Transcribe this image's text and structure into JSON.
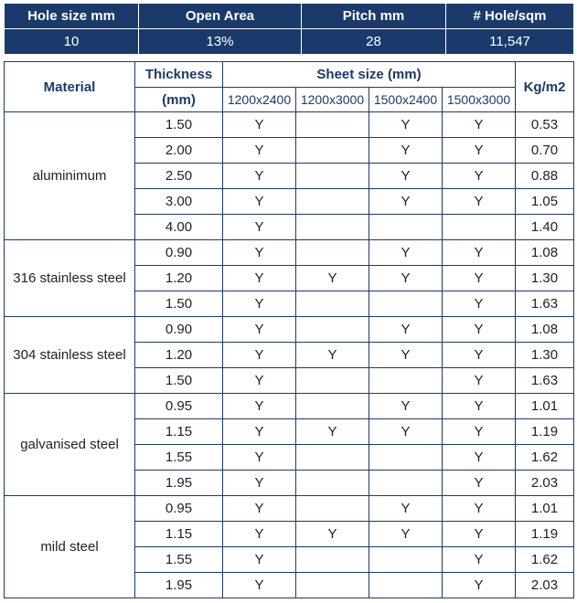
{
  "summary": {
    "headers": [
      "Hole size mm",
      "Open Area",
      "Pitch mm",
      "# Hole/sqm"
    ],
    "values": [
      "10",
      "13%",
      "28",
      "11,547"
    ]
  },
  "table": {
    "material_header": "Material",
    "thickness_header_line1": "Thickness",
    "thickness_header_line2": "(mm)",
    "sheet_size_header": "Sheet size (mm)",
    "sheet_sizes": [
      "1200x2400",
      "1200x3000",
      "1500x2400",
      "1500x3000"
    ],
    "kg_header": "Kg/m2",
    "groups": [
      {
        "material": "aluminimum",
        "rows": [
          {
            "thickness": "1.50",
            "s1": "Y",
            "s2": "",
            "s3": "Y",
            "s4": "Y",
            "kg": "0.53"
          },
          {
            "thickness": "2.00",
            "s1": "Y",
            "s2": "",
            "s3": "Y",
            "s4": "Y",
            "kg": "0.70"
          },
          {
            "thickness": "2.50",
            "s1": "Y",
            "s2": "",
            "s3": "Y",
            "s4": "Y",
            "kg": "0.88"
          },
          {
            "thickness": "3.00",
            "s1": "Y",
            "s2": "",
            "s3": "Y",
            "s4": "Y",
            "kg": "1.05"
          },
          {
            "thickness": "4.00",
            "s1": "Y",
            "s2": "",
            "s3": "",
            "s4": "",
            "kg": "1.40"
          }
        ]
      },
      {
        "material": "316 stainless steel",
        "rows": [
          {
            "thickness": "0.90",
            "s1": "Y",
            "s2": "",
            "s3": "Y",
            "s4": "Y",
            "kg": "1.08"
          },
          {
            "thickness": "1.20",
            "s1": "Y",
            "s2": "Y",
            "s3": "Y",
            "s4": "Y",
            "kg": "1.30"
          },
          {
            "thickness": "1.50",
            "s1": "Y",
            "s2": "",
            "s3": "",
            "s4": "Y",
            "kg": "1.63"
          }
        ]
      },
      {
        "material": "304 stainless steel",
        "rows": [
          {
            "thickness": "0.90",
            "s1": "Y",
            "s2": "",
            "s3": "Y",
            "s4": "Y",
            "kg": "1.08"
          },
          {
            "thickness": "1.20",
            "s1": "Y",
            "s2": "Y",
            "s3": "Y",
            "s4": "Y",
            "kg": "1.30"
          },
          {
            "thickness": "1.50",
            "s1": "Y",
            "s2": "",
            "s3": "",
            "s4": "Y",
            "kg": "1.63"
          }
        ]
      },
      {
        "material": "galvanised steel",
        "rows": [
          {
            "thickness": "0.95",
            "s1": "Y",
            "s2": "",
            "s3": "Y",
            "s4": "Y",
            "kg": "1.01"
          },
          {
            "thickness": "1.15",
            "s1": "Y",
            "s2": "Y",
            "s3": "Y",
            "s4": "Y",
            "kg": "1.19"
          },
          {
            "thickness": "1.55",
            "s1": "Y",
            "s2": "",
            "s3": "",
            "s4": "Y",
            "kg": "1.62"
          },
          {
            "thickness": "1.95",
            "s1": "Y",
            "s2": "",
            "s3": "",
            "s4": "Y",
            "kg": "2.03"
          }
        ]
      },
      {
        "material": "mild steel",
        "rows": [
          {
            "thickness": "0.95",
            "s1": "Y",
            "s2": "",
            "s3": "Y",
            "s4": "Y",
            "kg": "1.01"
          },
          {
            "thickness": "1.15",
            "s1": "Y",
            "s2": "Y",
            "s3": "Y",
            "s4": "Y",
            "kg": "1.19"
          },
          {
            "thickness": "1.55",
            "s1": "Y",
            "s2": "",
            "s3": "",
            "s4": "Y",
            "kg": "1.62"
          },
          {
            "thickness": "1.95",
            "s1": "Y",
            "s2": "",
            "s3": "",
            "s4": "Y",
            "kg": "2.03"
          }
        ]
      }
    ]
  }
}
